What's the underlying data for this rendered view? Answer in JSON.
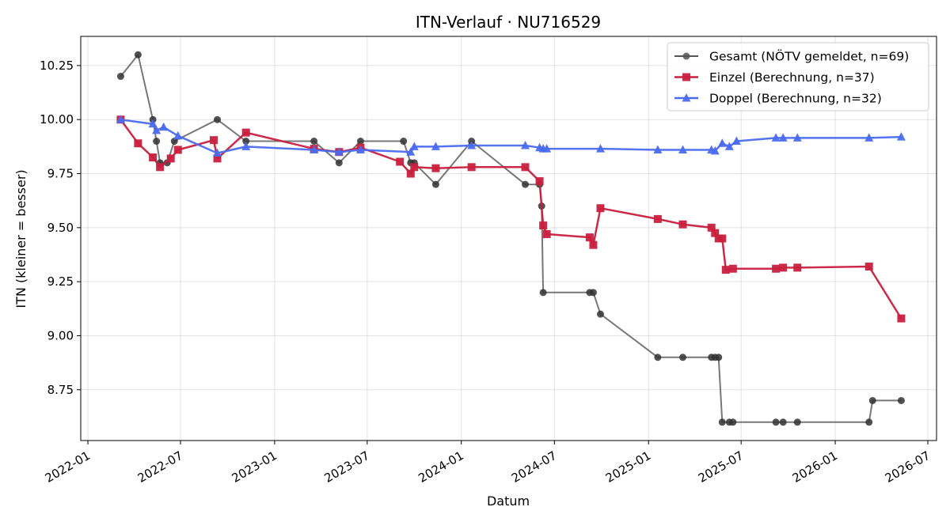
{
  "chart_data": {
    "type": "line",
    "title": "ITN-Verlauf · NU716529",
    "xlabel": "Datum",
    "ylabel": "ITN  (kleiner = besser)",
    "ylim": [
      8.515,
      10.385
    ],
    "xlim": [
      "2021-12-18",
      "2026-07-18"
    ],
    "grid": true,
    "legend_position": "top-right",
    "x_ticks": [
      "2022-01",
      "2022-07",
      "2023-01",
      "2023-07",
      "2024-01",
      "2024-07",
      "2025-01",
      "2025-07",
      "2026-01",
      "2026-07"
    ],
    "y_ticks": [
      "8.75",
      "9.00",
      "9.25",
      "9.50",
      "9.75",
      "10.00",
      "10.25"
    ],
    "series": [
      {
        "name": "Gesamt (NÖTV gemeldet, n=69)",
        "color": "#555555",
        "marker": "circle",
        "points": [
          [
            "2022-03-06",
            10.2
          ],
          [
            "2022-04-09",
            10.3
          ],
          [
            "2022-05-08",
            10.0
          ],
          [
            "2022-05-15",
            9.9
          ],
          [
            "2022-05-22",
            9.8
          ],
          [
            "2022-06-05",
            9.8
          ],
          [
            "2022-06-19",
            9.9
          ],
          [
            "2022-09-11",
            10.0
          ],
          [
            "2022-11-06",
            9.9
          ],
          [
            "2023-03-19",
            9.9
          ],
          [
            "2023-05-07",
            9.8
          ],
          [
            "2023-06-18",
            9.9
          ],
          [
            "2023-09-10",
            9.9
          ],
          [
            "2023-09-24",
            9.8
          ],
          [
            "2023-10-01",
            9.8
          ],
          [
            "2023-11-12",
            9.7
          ],
          [
            "2024-01-21",
            9.9
          ],
          [
            "2024-05-05",
            9.7
          ],
          [
            "2024-06-02",
            9.7
          ],
          [
            "2024-06-06",
            9.6
          ],
          [
            "2024-06-09",
            9.2
          ],
          [
            "2024-09-08",
            9.2
          ],
          [
            "2024-09-15",
            9.2
          ],
          [
            "2024-09-29",
            9.1
          ],
          [
            "2025-01-19",
            8.9
          ],
          [
            "2025-03-09",
            8.9
          ],
          [
            "2025-05-04",
            8.9
          ],
          [
            "2025-05-11",
            8.9
          ],
          [
            "2025-05-18",
            8.9
          ],
          [
            "2025-05-25",
            8.6
          ],
          [
            "2025-06-08",
            8.6
          ],
          [
            "2025-06-15",
            8.6
          ],
          [
            "2025-09-07",
            8.6
          ],
          [
            "2025-09-21",
            8.6
          ],
          [
            "2025-10-19",
            8.6
          ],
          [
            "2026-03-08",
            8.6
          ],
          [
            "2026-03-15",
            8.7
          ],
          [
            "2026-05-10",
            8.7
          ]
        ]
      },
      {
        "name": "Einzel (Berechnung, n=37)",
        "color": "#c8203e",
        "marker": "square",
        "points": [
          [
            "2022-03-06",
            10.0
          ],
          [
            "2022-04-09",
            9.89
          ],
          [
            "2022-05-08",
            9.825
          ],
          [
            "2022-05-22",
            9.78
          ],
          [
            "2022-06-12",
            9.82
          ],
          [
            "2022-06-26",
            9.86
          ],
          [
            "2022-09-04",
            9.905
          ],
          [
            "2022-09-11",
            9.82
          ],
          [
            "2022-11-06",
            9.94
          ],
          [
            "2023-03-19",
            9.865
          ],
          [
            "2023-05-07",
            9.85
          ],
          [
            "2023-06-18",
            9.87
          ],
          [
            "2023-09-03",
            9.805
          ],
          [
            "2023-09-24",
            9.75
          ],
          [
            "2023-10-01",
            9.78
          ],
          [
            "2023-11-12",
            9.775
          ],
          [
            "2024-01-21",
            9.78
          ],
          [
            "2024-05-05",
            9.78
          ],
          [
            "2024-06-02",
            9.715
          ],
          [
            "2024-06-09",
            9.51
          ],
          [
            "2024-06-16",
            9.47
          ],
          [
            "2024-09-08",
            9.455
          ],
          [
            "2024-09-15",
            9.42
          ],
          [
            "2024-09-29",
            9.59
          ],
          [
            "2025-01-19",
            9.54
          ],
          [
            "2025-03-09",
            9.515
          ],
          [
            "2025-05-04",
            9.5
          ],
          [
            "2025-05-11",
            9.475
          ],
          [
            "2025-05-18",
            9.45
          ],
          [
            "2025-05-25",
            9.45
          ],
          [
            "2025-06-01",
            9.305
          ],
          [
            "2025-06-15",
            9.31
          ],
          [
            "2025-09-07",
            9.31
          ],
          [
            "2025-09-21",
            9.315
          ],
          [
            "2025-10-19",
            9.315
          ],
          [
            "2026-03-08",
            9.32
          ],
          [
            "2026-05-10",
            9.08
          ]
        ]
      },
      {
        "name": "Doppel (Berechnung, n=32)",
        "color": "#4a6cf0",
        "marker": "triangle",
        "points": [
          [
            "2022-03-06",
            10.0
          ],
          [
            "2022-05-08",
            9.98
          ],
          [
            "2022-05-15",
            9.95
          ],
          [
            "2022-05-29",
            9.965
          ],
          [
            "2022-06-26",
            9.925
          ],
          [
            "2022-09-11",
            9.845
          ],
          [
            "2022-11-06",
            9.875
          ],
          [
            "2023-03-19",
            9.86
          ],
          [
            "2023-05-07",
            9.85
          ],
          [
            "2023-06-18",
            9.86
          ],
          [
            "2023-09-24",
            9.85
          ],
          [
            "2023-10-01",
            9.875
          ],
          [
            "2023-11-12",
            9.875
          ],
          [
            "2024-01-21",
            9.88
          ],
          [
            "2024-05-05",
            9.88
          ],
          [
            "2024-06-02",
            9.87
          ],
          [
            "2024-06-09",
            9.865
          ],
          [
            "2024-06-16",
            9.865
          ],
          [
            "2024-09-29",
            9.865
          ],
          [
            "2025-01-19",
            9.86
          ],
          [
            "2025-03-09",
            9.86
          ],
          [
            "2025-05-04",
            9.86
          ],
          [
            "2025-05-11",
            9.855
          ],
          [
            "2025-05-25",
            9.89
          ],
          [
            "2025-06-08",
            9.875
          ],
          [
            "2025-06-22",
            9.9
          ],
          [
            "2025-09-07",
            9.915
          ],
          [
            "2025-09-21",
            9.915
          ],
          [
            "2025-10-19",
            9.915
          ],
          [
            "2026-03-08",
            9.915
          ],
          [
            "2026-05-10",
            9.92
          ]
        ]
      }
    ]
  }
}
